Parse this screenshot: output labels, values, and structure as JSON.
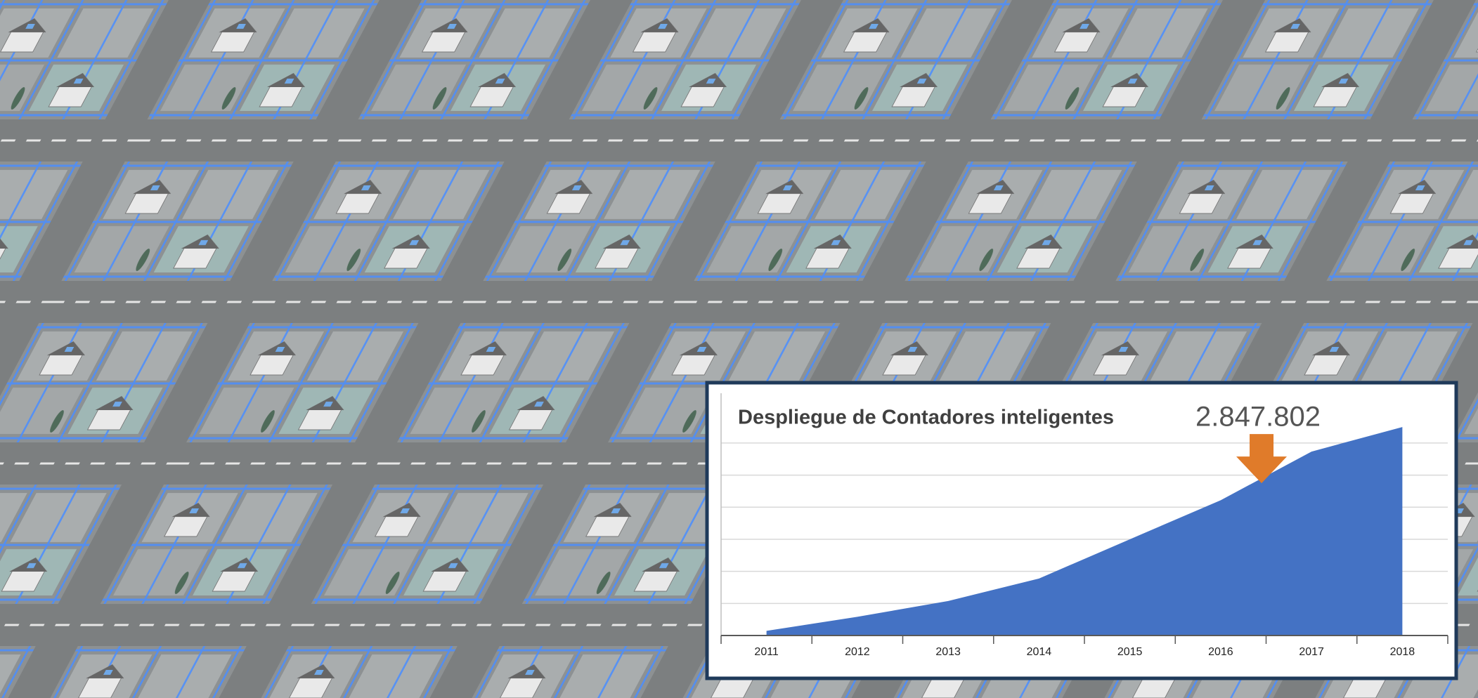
{
  "chart_data": {
    "type": "area",
    "title": "Despliegue de Contadores inteligentes",
    "annotation": {
      "value": 2847802,
      "label": "2.847.802"
    },
    "categories": [
      "2011",
      "2012",
      "2013",
      "2014",
      "2015",
      "2016",
      "2017",
      "2018"
    ],
    "values": [
      87000,
      350000,
      646000,
      1066000,
      1800000,
      2530000,
      3440000,
      3900000
    ],
    "color": "#4472c4",
    "annotation_color": "#e07b2a",
    "ylim": [
      0,
      4400000
    ],
    "yticks": [
      0,
      600000,
      1200000,
      1800000,
      2400000,
      3000000,
      3600000
    ],
    "grid": true
  }
}
